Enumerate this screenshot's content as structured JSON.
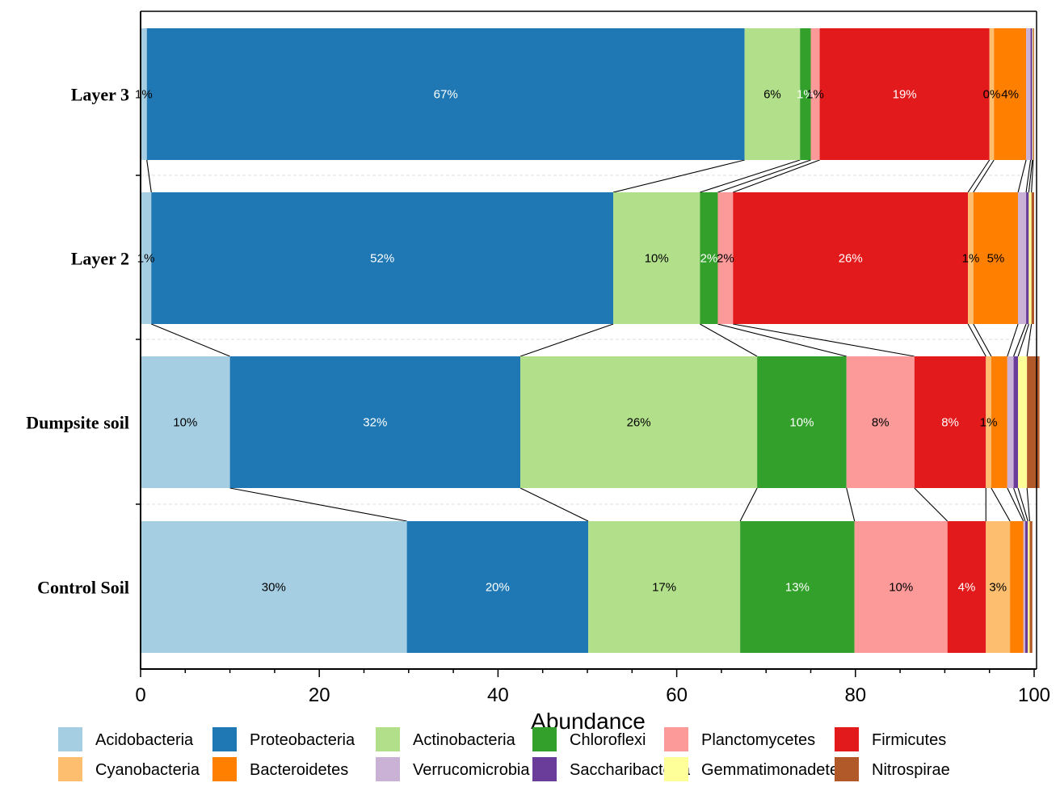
{
  "chart_data": {
    "type": "bar",
    "orientation": "horizontal",
    "stacked": true,
    "xlabel": "Abundance",
    "xlim": [
      0,
      100
    ],
    "x_ticks": [
      0,
      20,
      40,
      60,
      80,
      100
    ],
    "categories": [
      "Layer 3",
      "Layer 2",
      "Dumpsite soil",
      "Control Soil"
    ],
    "legend_position": "bottom",
    "series": [
      {
        "name": "Acidobacteria",
        "color": "#a6cee3",
        "values": [
          0.7,
          1.2,
          10,
          29.8
        ]
      },
      {
        "name": "Proteobacteria",
        "color": "#1f78b4",
        "values": [
          66.9,
          51.7,
          32.5,
          20.3
        ]
      },
      {
        "name": "Actinobacteria",
        "color": "#b2df8a",
        "values": [
          6.2,
          9.7,
          26.5,
          17
        ]
      },
      {
        "name": "Chloroflexi",
        "color": "#33a02c",
        "values": [
          1.2,
          2,
          10,
          12.8
        ]
      },
      {
        "name": "Planctomycetes",
        "color": "#fb9a99",
        "values": [
          1,
          1.7,
          7.6,
          10.4
        ]
      },
      {
        "name": "Firmicutes",
        "color": "#e31a1c",
        "values": [
          19,
          26.3,
          8,
          4.3
        ]
      },
      {
        "name": "Cyanobacteria",
        "color": "#fdbf6f",
        "values": [
          0.5,
          0.6,
          0.6,
          2.7
        ]
      },
      {
        "name": "Bacteroidetes",
        "color": "#ff7f00",
        "values": [
          3.6,
          5,
          1.8,
          1.5
        ]
      },
      {
        "name": "Verrucomicrobia",
        "color": "#cab2d6",
        "values": [
          0.5,
          0.9,
          0.7,
          0.2
        ]
      },
      {
        "name": "Saccharibacteria",
        "color": "#6a3d9a",
        "values": [
          0.2,
          0.3,
          0.5,
          0.3
        ]
      },
      {
        "name": "Gemmatimonadetes",
        "color": "#ffff99",
        "values": [
          0.1,
          0.3,
          1,
          0.2
        ]
      },
      {
        "name": "Nitrospirae",
        "color": "#b15928",
        "values": [
          0.1,
          0.3,
          1.4,
          0.3
        ]
      }
    ],
    "data_labels": [
      [
        {
          "series": 0,
          "text": "1%"
        },
        {
          "series": 1,
          "text": "67%"
        },
        {
          "series": 2,
          "text": "6%"
        },
        {
          "series": 3,
          "text": "1%"
        },
        {
          "series": 4,
          "text": "1%"
        },
        {
          "series": 5,
          "text": "19%"
        },
        {
          "series": 6,
          "text": "0%"
        },
        {
          "series": 7,
          "text": "4%"
        }
      ],
      [
        {
          "series": 0,
          "text": "1%"
        },
        {
          "series": 1,
          "text": "52%"
        },
        {
          "series": 2,
          "text": "10%"
        },
        {
          "series": 3,
          "text": "2%"
        },
        {
          "series": 4,
          "text": "2%"
        },
        {
          "series": 5,
          "text": "26%"
        },
        {
          "series": 6,
          "text": "1%"
        },
        {
          "series": 7,
          "text": "5%"
        }
      ],
      [
        {
          "series": 0,
          "text": "10%"
        },
        {
          "series": 1,
          "text": "32%"
        },
        {
          "series": 2,
          "text": "26%"
        },
        {
          "series": 3,
          "text": "10%"
        },
        {
          "series": 4,
          "text": "8%"
        },
        {
          "series": 5,
          "text": "8%"
        },
        {
          "series": 6,
          "text": "1%"
        }
      ],
      [
        {
          "series": 0,
          "text": "30%"
        },
        {
          "series": 1,
          "text": "20%"
        },
        {
          "series": 2,
          "text": "17%"
        },
        {
          "series": 3,
          "text": "13%"
        },
        {
          "series": 4,
          "text": "10%"
        },
        {
          "series": 5,
          "text": "4%"
        },
        {
          "series": 6,
          "text": "3%"
        }
      ]
    ]
  }
}
